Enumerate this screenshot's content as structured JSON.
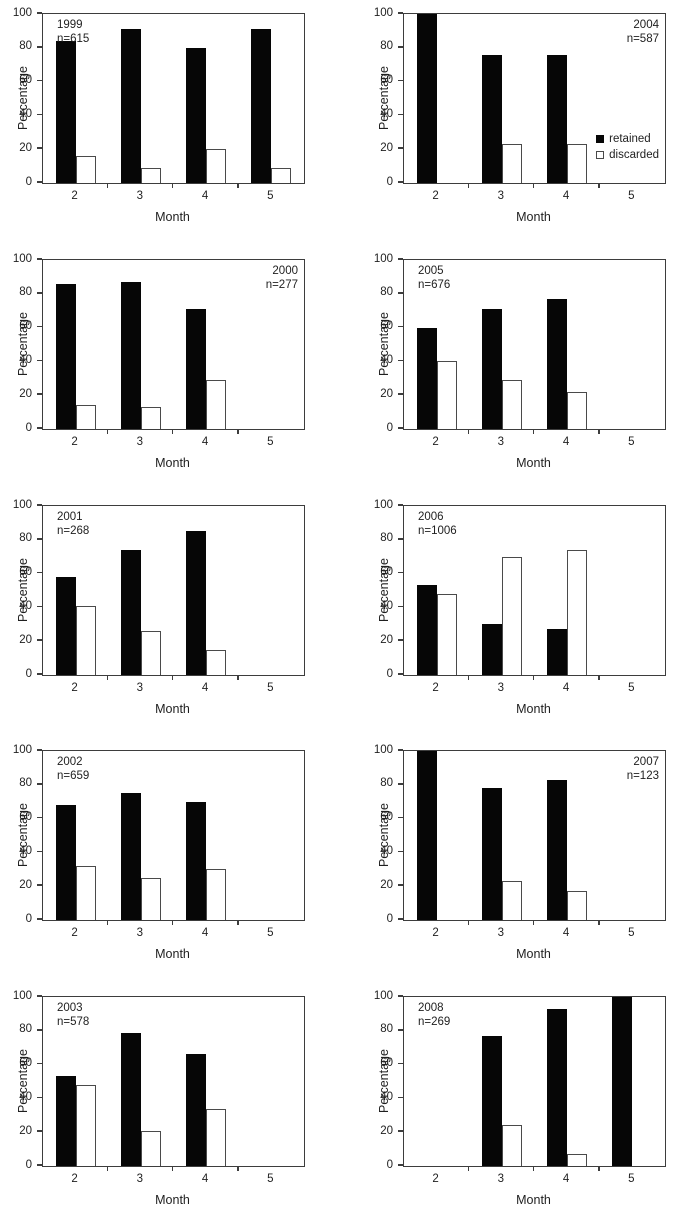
{
  "figure": {
    "ylabel": "Percentage",
    "xlabel": "Month",
    "colors": {
      "retained_fill": "#060606",
      "discarded_fill": "#ffffff",
      "bar_border": "#4a4a4a",
      "axis": "#3d3d3d",
      "text": "#1f1f1f",
      "background": "#ffffff"
    },
    "legend": {
      "items": [
        {
          "label": "retained",
          "swatch": "filled-black-square-icon"
        },
        {
          "label": "discarded",
          "swatch": "open-white-square-icon"
        }
      ],
      "shown_on_chart": "2004",
      "position": "inside-right-lower"
    }
  },
  "chart_data": [
    {
      "type": "bar",
      "year": "1999",
      "n_label": "n=615",
      "annotation_pos": "top-left",
      "xlabel": "Month",
      "ylabel": "Percentage",
      "ylim": [
        0,
        100
      ],
      "yticks": [
        0,
        20,
        40,
        60,
        80,
        100
      ],
      "categories": [
        "2",
        "3",
        "4",
        "5"
      ],
      "series": [
        {
          "name": "retained",
          "values": [
            84,
            91,
            80,
            91
          ]
        },
        {
          "name": "discarded",
          "values": [
            16,
            9,
            20,
            9
          ]
        }
      ],
      "legend": false
    },
    {
      "type": "bar",
      "year": "2004",
      "n_label": "n=587",
      "annotation_pos": "top-right",
      "xlabel": "Month",
      "ylabel": "Percentage",
      "ylim": [
        0,
        100
      ],
      "yticks": [
        0,
        20,
        40,
        60,
        80,
        100
      ],
      "categories": [
        "2",
        "3",
        "4",
        "5"
      ],
      "series": [
        {
          "name": "retained",
          "values": [
            100,
            76,
            76,
            null
          ]
        },
        {
          "name": "discarded",
          "values": [
            null,
            23,
            23,
            null
          ]
        }
      ],
      "legend": true
    },
    {
      "type": "bar",
      "year": "2000",
      "n_label": "n=277",
      "annotation_pos": "top-right",
      "xlabel": "Month",
      "ylabel": "Percentage",
      "ylim": [
        0,
        100
      ],
      "yticks": [
        0,
        20,
        40,
        60,
        80,
        100
      ],
      "categories": [
        "2",
        "3",
        "4",
        "5"
      ],
      "series": [
        {
          "name": "retained",
          "values": [
            86,
            87,
            71,
            null
          ]
        },
        {
          "name": "discarded",
          "values": [
            14,
            13,
            29,
            null
          ]
        }
      ],
      "legend": false
    },
    {
      "type": "bar",
      "year": "2005",
      "n_label": "n=676",
      "annotation_pos": "top-left",
      "xlabel": "Month",
      "ylabel": "Percentage",
      "ylim": [
        0,
        100
      ],
      "yticks": [
        0,
        20,
        40,
        60,
        80,
        100
      ],
      "categories": [
        "2",
        "3",
        "4",
        "5"
      ],
      "series": [
        {
          "name": "retained",
          "values": [
            60,
            71,
            77,
            null
          ]
        },
        {
          "name": "discarded",
          "values": [
            40,
            29,
            22,
            null
          ]
        }
      ],
      "legend": false
    },
    {
      "type": "bar",
      "year": "2001",
      "n_label": "n=268",
      "annotation_pos": "top-left",
      "xlabel": "Month",
      "ylabel": "Percentage",
      "ylim": [
        0,
        100
      ],
      "yticks": [
        0,
        20,
        40,
        60,
        80,
        100
      ],
      "categories": [
        "2",
        "3",
        "4",
        "5"
      ],
      "series": [
        {
          "name": "retained",
          "values": [
            58,
            74,
            85,
            null
          ]
        },
        {
          "name": "discarded",
          "values": [
            41,
            26,
            15,
            null
          ]
        }
      ],
      "legend": false
    },
    {
      "type": "bar",
      "year": "2006",
      "n_label": "n=1006",
      "annotation_pos": "top-left",
      "xlabel": "Month",
      "ylabel": "Percentage",
      "ylim": [
        0,
        100
      ],
      "yticks": [
        0,
        20,
        40,
        60,
        80,
        100
      ],
      "categories": [
        "2",
        "3",
        "4",
        "5"
      ],
      "series": [
        {
          "name": "retained",
          "values": [
            53,
            30,
            27,
            null
          ]
        },
        {
          "name": "discarded",
          "values": [
            48,
            70,
            74,
            null
          ]
        }
      ],
      "legend": false
    },
    {
      "type": "bar",
      "year": "2002",
      "n_label": "n=659",
      "annotation_pos": "top-left",
      "xlabel": "Month",
      "ylabel": "Percentage",
      "ylim": [
        0,
        100
      ],
      "yticks": [
        0,
        20,
        40,
        60,
        80,
        100
      ],
      "categories": [
        "2",
        "3",
        "4",
        "5"
      ],
      "series": [
        {
          "name": "retained",
          "values": [
            68,
            75,
            70,
            null
          ]
        },
        {
          "name": "discarded",
          "values": [
            32,
            25,
            30,
            null
          ]
        }
      ],
      "legend": false
    },
    {
      "type": "bar",
      "year": "2007",
      "n_label": "n=123",
      "annotation_pos": "top-right",
      "xlabel": "Month",
      "ylabel": "Percentage",
      "ylim": [
        0,
        100
      ],
      "yticks": [
        0,
        20,
        40,
        60,
        80,
        100
      ],
      "categories": [
        "2",
        "3",
        "4",
        "5"
      ],
      "series": [
        {
          "name": "retained",
          "values": [
            100,
            78,
            83,
            null
          ]
        },
        {
          "name": "discarded",
          "values": [
            null,
            23,
            17,
            null
          ]
        }
      ],
      "legend": false
    },
    {
      "type": "bar",
      "year": "2003",
      "n_label": "n=578",
      "annotation_pos": "top-left",
      "xlabel": "Month",
      "ylabel": "Percentage",
      "ylim": [
        0,
        100
      ],
      "yticks": [
        0,
        20,
        40,
        60,
        80,
        100
      ],
      "categories": [
        "2",
        "3",
        "4",
        "5"
      ],
      "series": [
        {
          "name": "retained",
          "values": [
            53,
            79,
            66,
            null
          ]
        },
        {
          "name": "discarded",
          "values": [
            48,
            21,
            34,
            null
          ]
        }
      ],
      "legend": false
    },
    {
      "type": "bar",
      "year": "2008",
      "n_label": "n=269",
      "annotation_pos": "top-left",
      "xlabel": "Month",
      "ylabel": "Percentage",
      "ylim": [
        0,
        100
      ],
      "yticks": [
        0,
        20,
        40,
        60,
        80,
        100
      ],
      "categories": [
        "2",
        "3",
        "4",
        "5"
      ],
      "series": [
        {
          "name": "retained",
          "values": [
            null,
            77,
            93,
            100
          ]
        },
        {
          "name": "discarded",
          "values": [
            null,
            24,
            7,
            null
          ]
        }
      ],
      "legend": false
    }
  ]
}
